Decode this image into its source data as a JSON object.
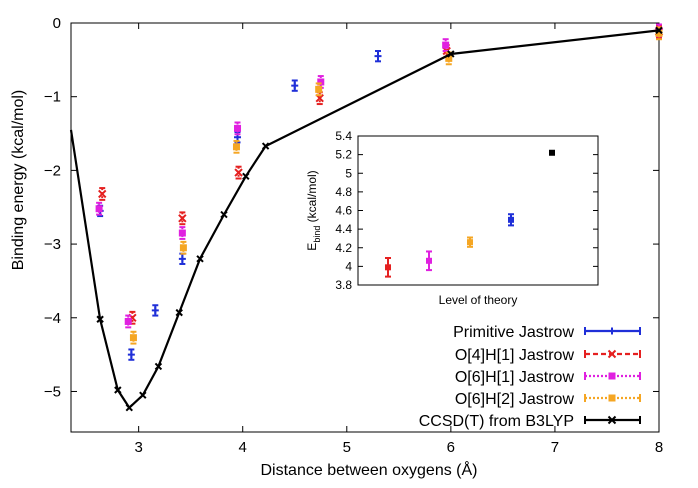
{
  "chart_data": {
    "type": "scatter",
    "xlabel": "Distance between oxygens (Å)",
    "ylabel": "Binding energy (kcal/mol)",
    "xlim": [
      2.35,
      8.0
    ],
    "ylim": [
      -5.55,
      0
    ],
    "xticks": [
      3,
      4,
      5,
      6,
      7,
      8
    ],
    "yticks": [
      0,
      -1,
      -2,
      -3,
      -4,
      -5
    ],
    "grid": false,
    "legend_position": "bottom-right",
    "series": [
      {
        "name": "Primitive Jastrow",
        "color": "#1f2fd8",
        "marker": "plus",
        "style": "errorbar",
        "points": [
          {
            "x": 2.63,
            "y": -2.55,
            "err": 0.07
          },
          {
            "x": 2.93,
            "y": -4.5,
            "err": 0.07
          },
          {
            "x": 3.16,
            "y": -3.9,
            "err": 0.07
          },
          {
            "x": 3.42,
            "y": -3.2,
            "err": 0.07
          },
          {
            "x": 3.95,
            "y": -1.55,
            "err": 0.07
          },
          {
            "x": 4.5,
            "y": -0.85,
            "err": 0.07
          },
          {
            "x": 5.3,
            "y": -0.45,
            "err": 0.07
          }
        ]
      },
      {
        "name": "O[4]H[1] Jastrow",
        "color": "#e52020",
        "marker": "cross",
        "style": "errorbar",
        "points": [
          {
            "x": 2.65,
            "y": -2.32,
            "err": 0.08
          },
          {
            "x": 2.94,
            "y": -4.0,
            "err": 0.08
          },
          {
            "x": 3.42,
            "y": -2.65,
            "err": 0.08
          },
          {
            "x": 3.96,
            "y": -2.03,
            "err": 0.08
          },
          {
            "x": 4.74,
            "y": -1.02,
            "err": 0.08
          },
          {
            "x": 5.96,
            "y": -0.38,
            "err": 0.08
          },
          {
            "x": 8.0,
            "y": -0.12,
            "err": 0.08
          }
        ]
      },
      {
        "name": "O[6]H[1] Jastrow",
        "color": "#e020e0",
        "marker": "filled-square",
        "style": "errorbar",
        "points": [
          {
            "x": 2.62,
            "y": -2.52,
            "err": 0.08
          },
          {
            "x": 2.9,
            "y": -4.05,
            "err": 0.08
          },
          {
            "x": 3.42,
            "y": -2.85,
            "err": 0.08
          },
          {
            "x": 3.95,
            "y": -1.43,
            "err": 0.08
          },
          {
            "x": 4.75,
            "y": -0.8,
            "err": 0.08
          },
          {
            "x": 5.95,
            "y": -0.3,
            "err": 0.08
          },
          {
            "x": 8.0,
            "y": -0.1,
            "err": 0.08
          }
        ]
      },
      {
        "name": "O[6]H[2] Jastrow",
        "color": "#f5a623",
        "marker": "filled-square",
        "style": "errorbar",
        "points": [
          {
            "x": 2.95,
            "y": -4.27,
            "err": 0.08
          },
          {
            "x": 3.43,
            "y": -3.05,
            "err": 0.08
          },
          {
            "x": 3.94,
            "y": -1.68,
            "err": 0.08
          },
          {
            "x": 4.73,
            "y": -0.9,
            "err": 0.08
          },
          {
            "x": 5.98,
            "y": -0.48,
            "err": 0.08
          },
          {
            "x": 8.0,
            "y": -0.14,
            "err": 0.08
          }
        ]
      },
      {
        "name": "CCSD(T) from B3LYP",
        "color": "#000000",
        "marker": "x",
        "style": "line",
        "points": [
          {
            "x": 2.35,
            "y": -1.45
          },
          {
            "x": 2.63,
            "y": -4.02
          },
          {
            "x": 2.8,
            "y": -4.98
          },
          {
            "x": 2.91,
            "y": -5.22
          },
          {
            "x": 3.04,
            "y": -5.05
          },
          {
            "x": 3.19,
            "y": -4.66
          },
          {
            "x": 3.39,
            "y": -3.93
          },
          {
            "x": 3.59,
            "y": -3.2
          },
          {
            "x": 3.82,
            "y": -2.6
          },
          {
            "x": 4.03,
            "y": -2.08
          },
          {
            "x": 4.22,
            "y": -1.67
          },
          {
            "x": 6.0,
            "y": -0.42
          },
          {
            "x": 8.0,
            "y": -0.1
          }
        ]
      }
    ],
    "inset": {
      "type": "scatter",
      "xlabel": "Level of theory",
      "ylabel": "E_bind (kcal/mol)",
      "ylim": [
        3.8,
        5.4
      ],
      "yticks": [
        "3.8",
        "4",
        "4.2",
        "4.4",
        "4.6",
        "4.8",
        "5",
        "5.2",
        "5.4"
      ],
      "points": [
        {
          "level": 1,
          "y": 3.99,
          "err": 0.1,
          "color": "#e52020"
        },
        {
          "level": 2,
          "y": 4.06,
          "err": 0.1,
          "color": "#e020e0"
        },
        {
          "level": 3,
          "y": 4.26,
          "err": 0.05,
          "color": "#f5a623"
        },
        {
          "level": 4,
          "y": 4.5,
          "err": 0.06,
          "color": "#1f2fd8"
        },
        {
          "level": 5,
          "y": 5.22,
          "err": 0,
          "color": "#000000"
        }
      ]
    }
  }
}
